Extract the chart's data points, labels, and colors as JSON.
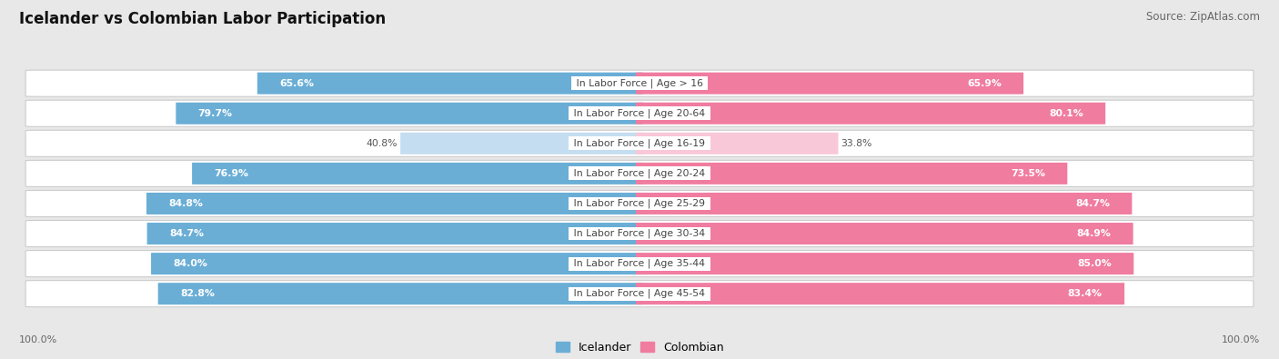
{
  "title": "Icelander vs Colombian Labor Participation",
  "source": "Source: ZipAtlas.com",
  "categories": [
    "In Labor Force | Age > 16",
    "In Labor Force | Age 20-64",
    "In Labor Force | Age 16-19",
    "In Labor Force | Age 20-24",
    "In Labor Force | Age 25-29",
    "In Labor Force | Age 30-34",
    "In Labor Force | Age 35-44",
    "In Labor Force | Age 45-54"
  ],
  "icelander_values": [
    65.6,
    79.7,
    40.8,
    76.9,
    84.8,
    84.7,
    84.0,
    82.8
  ],
  "colombian_values": [
    65.9,
    80.1,
    33.8,
    73.5,
    84.7,
    84.9,
    85.0,
    83.4
  ],
  "icelander_color": "#6aaed6",
  "icelander_color_light": "#c5ddf0",
  "colombian_color": "#f07ca0",
  "colombian_color_light": "#f8c8d8",
  "background_color": "#e8e8e8",
  "row_bg_color": "#f5f5f5",
  "max_value": 100.0,
  "legend_labels": [
    "Icelander",
    "Colombian"
  ],
  "bottom_label": "100.0%"
}
